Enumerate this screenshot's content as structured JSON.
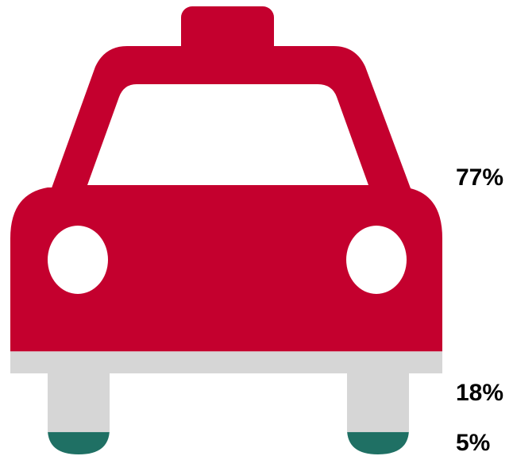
{
  "chart_data": {
    "type": "pictograph",
    "icon": "taxi-car-icon",
    "segments": [
      {
        "value": 77,
        "label": "77%",
        "color": "#c4002e"
      },
      {
        "value": 18,
        "label": "18%",
        "color": "#d6d6d6"
      },
      {
        "value": 5,
        "label": "5%",
        "color": "#1f7064"
      }
    ],
    "fill_direction": "bottom-to-top",
    "legend": "none"
  },
  "colors": {
    "background": "#ffffff",
    "window": "#ffffff",
    "label": "#000000"
  }
}
